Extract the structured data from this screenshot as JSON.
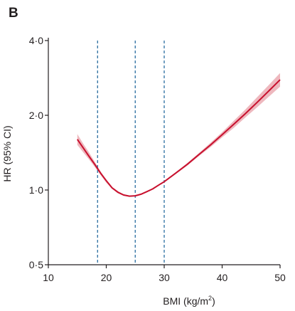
{
  "chart_data": {
    "type": "line",
    "panel_label": "B",
    "xlabel": "BMI (kg/m",
    "xlabel_superscript": "2",
    "xlabel_suffix": ")",
    "ylabel": "HR (95% CI)",
    "xlim": [
      10,
      50
    ],
    "ylim": [
      0.5,
      4.0
    ],
    "y_scale": "log",
    "grid": false,
    "x_ticks": [
      {
        "value": 10,
        "label": "10"
      },
      {
        "value": 20,
        "label": "20"
      },
      {
        "value": 30,
        "label": "30"
      },
      {
        "value": 40,
        "label": "40"
      },
      {
        "value": 50,
        "label": "50"
      }
    ],
    "y_ticks": [
      {
        "value": 0.5,
        "label": "0·5"
      },
      {
        "value": 1.0,
        "label": "1·0"
      },
      {
        "value": 2.0,
        "label": "2·0"
      },
      {
        "value": 4.0,
        "label": "4·0"
      }
    ],
    "reference_lines_x": [
      18.5,
      25,
      30
    ],
    "series": [
      {
        "line_color": "#c8102e",
        "ci_color": "#e8a0a8",
        "points": [
          {
            "x": 15,
            "y": 1.6,
            "lower": 1.52,
            "upper": 1.68
          },
          {
            "x": 16,
            "y": 1.48,
            "lower": 1.42,
            "upper": 1.54
          },
          {
            "x": 17,
            "y": 1.37,
            "lower": 1.33,
            "upper": 1.42
          },
          {
            "x": 18,
            "y": 1.27,
            "lower": 1.24,
            "upper": 1.3
          },
          {
            "x": 19,
            "y": 1.17,
            "lower": 1.15,
            "upper": 1.19
          },
          {
            "x": 20,
            "y": 1.09,
            "lower": 1.07,
            "upper": 1.1
          },
          {
            "x": 21,
            "y": 1.02,
            "lower": 1.01,
            "upper": 1.03
          },
          {
            "x": 22,
            "y": 0.98,
            "lower": 0.97,
            "upper": 0.99
          },
          {
            "x": 23,
            "y": 0.955,
            "lower": 0.948,
            "upper": 0.962
          },
          {
            "x": 24,
            "y": 0.945,
            "lower": 0.94,
            "upper": 0.95
          },
          {
            "x": 25,
            "y": 0.948,
            "lower": 0.944,
            "upper": 0.952
          },
          {
            "x": 26,
            "y": 0.962,
            "lower": 0.957,
            "upper": 0.967
          },
          {
            "x": 27,
            "y": 0.985,
            "lower": 0.98,
            "upper": 0.99
          },
          {
            "x": 28,
            "y": 1.01,
            "lower": 1.005,
            "upper": 1.016
          },
          {
            "x": 29,
            "y": 1.045,
            "lower": 1.038,
            "upper": 1.052
          },
          {
            "x": 30,
            "y": 1.08,
            "lower": 1.072,
            "upper": 1.088
          },
          {
            "x": 32,
            "y": 1.17,
            "lower": 1.16,
            "upper": 1.18
          },
          {
            "x": 34,
            "y": 1.27,
            "lower": 1.255,
            "upper": 1.285
          },
          {
            "x": 36,
            "y": 1.39,
            "lower": 1.37,
            "upper": 1.41
          },
          {
            "x": 38,
            "y": 1.52,
            "lower": 1.49,
            "upper": 1.55
          },
          {
            "x": 40,
            "y": 1.67,
            "lower": 1.63,
            "upper": 1.71
          },
          {
            "x": 42,
            "y": 1.84,
            "lower": 1.78,
            "upper": 1.9
          },
          {
            "x": 44,
            "y": 2.03,
            "lower": 1.96,
            "upper": 2.11
          },
          {
            "x": 46,
            "y": 2.25,
            "lower": 2.15,
            "upper": 2.36
          },
          {
            "x": 48,
            "y": 2.5,
            "lower": 2.37,
            "upper": 2.64
          },
          {
            "x": 50,
            "y": 2.78,
            "lower": 2.61,
            "upper": 2.96
          }
        ]
      }
    ]
  }
}
